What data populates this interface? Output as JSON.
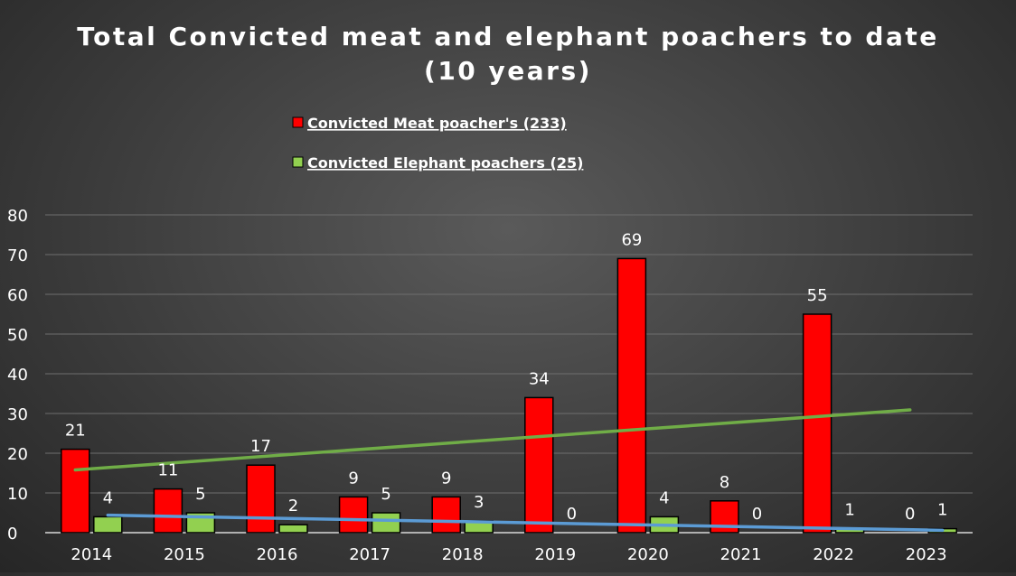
{
  "chart_data": {
    "type": "bar",
    "title_line1": "Total Convicted meat and elephant poachers to date",
    "title_line2": "(10 years)",
    "categories": [
      "2014",
      "2015",
      "2016",
      "2017",
      "2018",
      "2019",
      "2020",
      "2021",
      "2022",
      "2023"
    ],
    "series": [
      {
        "name": "Convicted Meat poacher's (233)",
        "color": "#ff0000",
        "values": [
          21,
          11,
          17,
          9,
          9,
          34,
          69,
          8,
          55,
          0
        ]
      },
      {
        "name": "Convicted Elephant poachers (25)",
        "color": "#92d050",
        "values": [
          4,
          5,
          2,
          5,
          3,
          0,
          4,
          0,
          1,
          1
        ]
      }
    ],
    "trendlines": [
      {
        "series": "Convicted Meat poacher's (233)",
        "color": "#70ad47",
        "start": 15.8,
        "end": 30.9
      },
      {
        "series": "Convicted Elephant poachers (25)",
        "color": "#5b9bd5",
        "start": 4.4,
        "end": 0.6
      }
    ],
    "ylim": [
      0,
      80
    ],
    "yticks": [
      0,
      10,
      20,
      30,
      40,
      50,
      60,
      70,
      80
    ],
    "grid": true,
    "legend_position": "top-center"
  }
}
